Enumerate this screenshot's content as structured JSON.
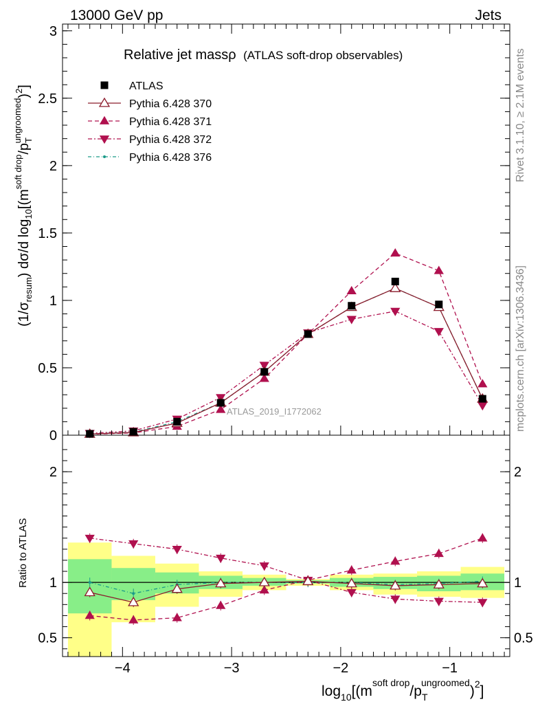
{
  "header": {
    "left": "13000 GeV pp",
    "right": "Jets"
  },
  "side": {
    "rivet": "Rivet 3.1.10, ≥ 2.1M events",
    "mcplots": "mcplots.cern.ch [arXiv:1306.3436]"
  },
  "plot_title": {
    "main": "Relative jet massρ",
    "sub": "(ATLAS soft-drop observables)"
  },
  "watermark": "ATLAS_2019_I1772062",
  "ylabel_main": "(1/σresum) dσ/d log10[(m^{soft drop}/p_T^{ungroomed})^2]",
  "ylabel_ratio": "Ratio to ATLAS",
  "xlabel": "log10[(m^{soft drop}/p_T^{ungroomed})^2]",
  "colors": {
    "atlas": "#000000",
    "p370": "#8b1a2b",
    "p371": "#b0104e",
    "p372": "#b0104e",
    "p376": "#1a9a88",
    "band_inner": "#88ee88",
    "band_outer": "#ffff88"
  },
  "chart_data": [
    {
      "type": "scatter",
      "panel": "main",
      "x": [
        -4.3,
        -3.9,
        -3.5,
        -3.1,
        -2.7,
        -2.3,
        -1.9,
        -1.5,
        -1.1,
        -0.7
      ],
      "bin_edges": [
        -4.5,
        -4.1,
        -3.7,
        -3.3,
        -2.9,
        -2.5,
        -2.1,
        -1.7,
        -1.3,
        -0.9,
        -0.5
      ],
      "xlim": [
        -4.55,
        -0.45
      ],
      "ylim": [
        0,
        3.05
      ],
      "yticks": [
        0,
        0.5,
        1,
        1.5,
        2,
        2.5,
        3
      ],
      "ytick_labels": [
        "0",
        "0.5",
        "1",
        "1.5",
        "2",
        "2.5",
        "3"
      ],
      "series": [
        {
          "name": "ATLAS",
          "key": "atlas",
          "values": [
            0.01,
            0.025,
            0.1,
            0.24,
            0.47,
            0.75,
            0.96,
            1.14,
            0.97,
            0.27
          ]
        },
        {
          "name": "Pythia 6.428 370",
          "key": "p370",
          "values": [
            0.009,
            0.02,
            0.09,
            0.24,
            0.47,
            0.75,
            0.95,
            1.09,
            0.95,
            0.27
          ]
        },
        {
          "name": "Pythia 6.428 371",
          "key": "p371",
          "values": [
            0.007,
            0.017,
            0.065,
            0.19,
            0.42,
            0.75,
            1.07,
            1.35,
            1.22,
            0.38
          ]
        },
        {
          "name": "Pythia 6.428 372",
          "key": "p372",
          "values": [
            0.014,
            0.032,
            0.12,
            0.28,
            0.52,
            0.76,
            0.86,
            0.92,
            0.77,
            0.22
          ]
        },
        {
          "name": "Pythia 6.428 376",
          "key": "p376",
          "values": [
            0.01,
            0.022,
            0.1,
            0.24,
            0.47,
            0.75,
            0.95,
            1.09,
            0.95,
            0.27
          ]
        }
      ]
    },
    {
      "type": "scatter",
      "panel": "ratio",
      "x": [
        -4.3,
        -3.9,
        -3.5,
        -3.1,
        -2.7,
        -2.3,
        -1.9,
        -1.5,
        -1.1,
        -0.7
      ],
      "xlim": [
        -4.55,
        -0.45
      ],
      "ylim": [
        0.33,
        2.33
      ],
      "yticks": [
        0.5,
        1,
        2
      ],
      "ytick_labels": [
        "0.5",
        "1",
        "2"
      ],
      "xticks": [
        -4,
        -3,
        -2,
        -1
      ],
      "xtick_labels": [
        "−4",
        "−3",
        "−2",
        "−1"
      ],
      "band_inner": [
        [
          0.72,
          1.21
        ],
        [
          0.84,
          1.13
        ],
        [
          0.9,
          1.09
        ],
        [
          0.94,
          1.06
        ],
        [
          0.97,
          1.04
        ],
        [
          0.99,
          1.02
        ],
        [
          0.96,
          1.04
        ],
        [
          0.94,
          1.05
        ],
        [
          0.92,
          1.06
        ],
        [
          0.93,
          1.08
        ]
      ],
      "band_outer": [
        [
          0.33,
          1.36
        ],
        [
          0.64,
          1.24
        ],
        [
          0.78,
          1.17
        ],
        [
          0.87,
          1.1
        ],
        [
          0.93,
          1.07
        ],
        [
          0.97,
          1.03
        ],
        [
          0.93,
          1.07
        ],
        [
          0.89,
          1.08
        ],
        [
          0.87,
          1.1
        ],
        [
          0.86,
          1.14
        ]
      ],
      "series": [
        {
          "name": "Pythia 6.428 370",
          "key": "p370",
          "values": [
            0.91,
            0.82,
            0.94,
            0.99,
            1.0,
            1.01,
            0.99,
            0.97,
            0.98,
            0.99
          ]
        },
        {
          "name": "Pythia 6.428 371",
          "key": "p371",
          "values": [
            0.7,
            0.66,
            0.68,
            0.79,
            0.93,
            1.02,
            1.11,
            1.19,
            1.26,
            1.4
          ]
        },
        {
          "name": "Pythia 6.428 372",
          "key": "p372",
          "values": [
            1.4,
            1.35,
            1.3,
            1.22,
            1.15,
            1.02,
            0.91,
            0.85,
            0.83,
            0.82
          ]
        },
        {
          "name": "Pythia 6.428 376",
          "key": "p376",
          "values": [
            1.0,
            0.9,
            0.98,
            1.0,
            1.0,
            1.0,
            1.0,
            0.98,
            0.99,
            1.01
          ]
        }
      ]
    }
  ]
}
